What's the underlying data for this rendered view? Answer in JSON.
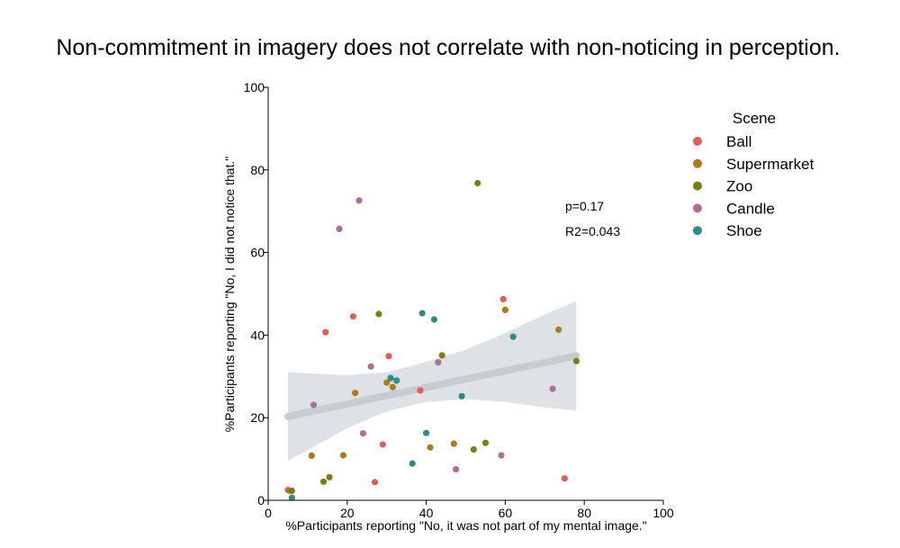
{
  "chart_data": {
    "type": "scatter",
    "title": "Non-commitment in imagery does not correlate with non-noticing in perception.",
    "xlabel": "%Participants reporting \"No, it was not part of my mental image.\"",
    "ylabel": "%Participants reporting \"No, I did not notice that.\"",
    "xlim": [
      0,
      100
    ],
    "ylim": [
      0,
      100
    ],
    "xticks": [
      0,
      20,
      40,
      60,
      80,
      100
    ],
    "yticks": [
      0,
      20,
      40,
      60,
      80,
      100
    ],
    "grid": false,
    "legend": {
      "title": "Scene",
      "placement": "right"
    },
    "annotations": [
      "p=0.17",
      "R2=0.043"
    ],
    "regression": {
      "x_range": [
        5,
        78
      ],
      "line": [
        [
          5,
          20.3
        ],
        [
          78,
          35.0
        ]
      ],
      "ci_upper": [
        [
          5,
          31.0
        ],
        [
          20,
          30.3
        ],
        [
          30,
          31.0
        ],
        [
          40,
          33.5
        ],
        [
          50,
          36.5
        ],
        [
          60,
          40.5
        ],
        [
          70,
          45.0
        ],
        [
          78,
          48.2
        ]
      ],
      "ci_lower": [
        [
          5,
          9.5
        ],
        [
          20,
          17.5
        ],
        [
          30,
          21.5
        ],
        [
          40,
          23.8
        ],
        [
          50,
          24.5
        ],
        [
          60,
          23.8
        ],
        [
          70,
          22.5
        ],
        [
          78,
          21.7
        ]
      ],
      "line_color": "#c5cdd3",
      "band_color": "#dde2e6"
    },
    "series": [
      {
        "name": "Ball",
        "color": "#e05c5f",
        "points": [
          [
            5,
            2.5
          ],
          [
            14.5,
            40.7
          ],
          [
            21.5,
            44.5
          ],
          [
            27,
            4.4
          ],
          [
            29,
            13.5
          ],
          [
            30.5,
            34.9
          ],
          [
            38.5,
            26.6
          ],
          [
            59.5,
            48.7
          ],
          [
            75,
            5.3
          ]
        ]
      },
      {
        "name": "Supermarket",
        "color": "#b07a1a",
        "points": [
          [
            5.5,
            2.3
          ],
          [
            11,
            10.8
          ],
          [
            19,
            10.9
          ],
          [
            22,
            26
          ],
          [
            30,
            28.5
          ],
          [
            31.5,
            27.4
          ],
          [
            41,
            12.8
          ],
          [
            47,
            13.7
          ],
          [
            60,
            46.1
          ],
          [
            73.5,
            41.3
          ]
        ]
      },
      {
        "name": "Zoo",
        "color": "#7d7d17",
        "points": [
          [
            6,
            2.3
          ],
          [
            14,
            4.5
          ],
          [
            15.5,
            5.6
          ],
          [
            28,
            45.1
          ],
          [
            44,
            35.1
          ],
          [
            52,
            12.3
          ],
          [
            53,
            76.8
          ],
          [
            55,
            13.9
          ],
          [
            78,
            33.7
          ]
        ]
      },
      {
        "name": "Candle",
        "color": "#ad6f95",
        "points": [
          [
            11.5,
            23.1
          ],
          [
            18,
            65.7
          ],
          [
            23,
            72.6
          ],
          [
            24,
            16.2
          ],
          [
            26,
            32.4
          ],
          [
            43,
            33.4
          ],
          [
            47.5,
            7.5
          ],
          [
            59,
            10.9
          ],
          [
            72,
            27
          ]
        ]
      },
      {
        "name": "Shoe",
        "color": "#2f8b88",
        "points": [
          [
            6,
            0.6
          ],
          [
            31,
            29.6
          ],
          [
            32.5,
            29
          ],
          [
            36.5,
            8.9
          ],
          [
            39,
            45.3
          ],
          [
            40,
            16.3
          ],
          [
            42,
            43.8
          ],
          [
            49,
            25.2
          ],
          [
            62,
            39.6
          ]
        ]
      }
    ]
  }
}
